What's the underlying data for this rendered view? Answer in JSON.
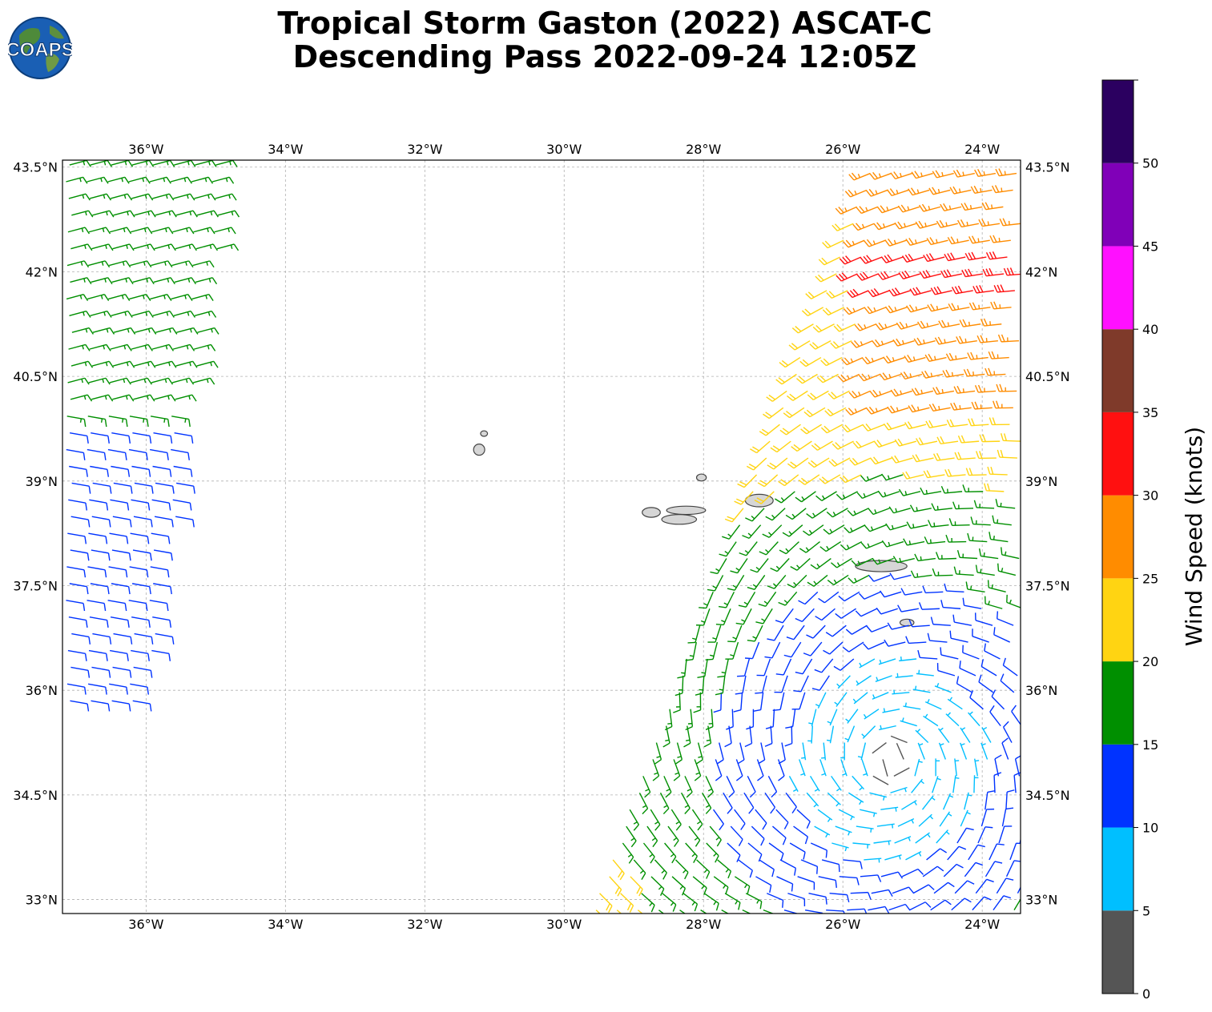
{
  "title_line1": "Tropical Storm Gaston (2022) ASCAT-C",
  "title_line2": "Descending Pass 2022-09-24 12:05Z",
  "logo": {
    "text": "COAPS",
    "icon": "globe-logo-icon"
  },
  "map": {
    "lon_range": [
      -37.2,
      -23.45
    ],
    "lat_range": [
      32.8,
      43.6
    ],
    "gridlines": true,
    "lon_ticks": [
      {
        "value": -36,
        "label": "36°W"
      },
      {
        "value": -34,
        "label": "34°W"
      },
      {
        "value": -32,
        "label": "32°W"
      },
      {
        "value": -30,
        "label": "30°W"
      },
      {
        "value": -28,
        "label": "28°W"
      },
      {
        "value": -26,
        "label": "26°W"
      },
      {
        "value": -24,
        "label": "24°W"
      }
    ],
    "lat_ticks": [
      {
        "value": 43.5,
        "label": "43.5°N"
      },
      {
        "value": 42,
        "label": "42°N"
      },
      {
        "value": 40.5,
        "label": "40.5°N"
      },
      {
        "value": 39,
        "label": "39°N"
      },
      {
        "value": 37.5,
        "label": "37.5°N"
      },
      {
        "value": 36,
        "label": "36°N"
      },
      {
        "value": 34.5,
        "label": "34.5°N"
      },
      {
        "value": 33,
        "label": "33°N"
      }
    ],
    "islands": [
      {
        "lon": -31.15,
        "lat": 39.68,
        "rx": 0.05,
        "ry": 0.04
      },
      {
        "lon": -31.22,
        "lat": 39.45,
        "rx": 0.08,
        "ry": 0.08
      },
      {
        "lon": -28.03,
        "lat": 39.05,
        "rx": 0.07,
        "ry": 0.05
      },
      {
        "lon": -27.2,
        "lat": 38.72,
        "rx": 0.2,
        "ry": 0.09
      },
      {
        "lon": -28.25,
        "lat": 38.58,
        "rx": 0.28,
        "ry": 0.06
      },
      {
        "lon": -28.75,
        "lat": 38.55,
        "rx": 0.13,
        "ry": 0.07
      },
      {
        "lon": -28.35,
        "lat": 38.45,
        "rx": 0.25,
        "ry": 0.07
      },
      {
        "lon": -25.45,
        "lat": 37.78,
        "rx": 0.37,
        "ry": 0.08
      },
      {
        "lon": -25.08,
        "lat": 36.97,
        "rx": 0.1,
        "ry": 0.05
      }
    ]
  },
  "colorbar": {
    "title": "Wind Speed (knots)",
    "bins": [
      {
        "from": 0,
        "to": 5,
        "color": "#555555"
      },
      {
        "from": 5,
        "to": 10,
        "color": "#00bfff"
      },
      {
        "from": 10,
        "to": 15,
        "color": "#0033ff"
      },
      {
        "from": 15,
        "to": 20,
        "color": "#008f00"
      },
      {
        "from": 20,
        "to": 25,
        "color": "#ffd412"
      },
      {
        "from": 25,
        "to": 30,
        "color": "#ff8c00"
      },
      {
        "from": 30,
        "to": 35,
        "color": "#ff1010"
      },
      {
        "from": 35,
        "to": 40,
        "color": "#7f3a2a"
      },
      {
        "from": 40,
        "to": 45,
        "color": "#ff10ff"
      },
      {
        "from": 45,
        "to": 50,
        "color": "#8000b8"
      },
      {
        "from": 50,
        "to": 55,
        "color": "#2b0060"
      }
    ],
    "tick_labels": [
      "0",
      "5",
      "10",
      "15",
      "20",
      "25",
      "30",
      "35",
      "40",
      "45",
      "50"
    ]
  },
  "swaths": [
    {
      "name": "western swath",
      "lat_top": 43.55,
      "lat_bottom": 35.85,
      "lon_left_top": -37.15,
      "lon_left_bottom": -37.15,
      "lon_right_top": -34.85,
      "lon_right_bottom": -36.05
    },
    {
      "name": "eastern swath",
      "lat_top": 43.5,
      "lat_bottom": 32.85,
      "lon_left_top": -25.6,
      "lon_left_bottom": -29.6,
      "lon_right_top": -23.45,
      "lon_right_bottom": -23.45
    }
  ]
}
